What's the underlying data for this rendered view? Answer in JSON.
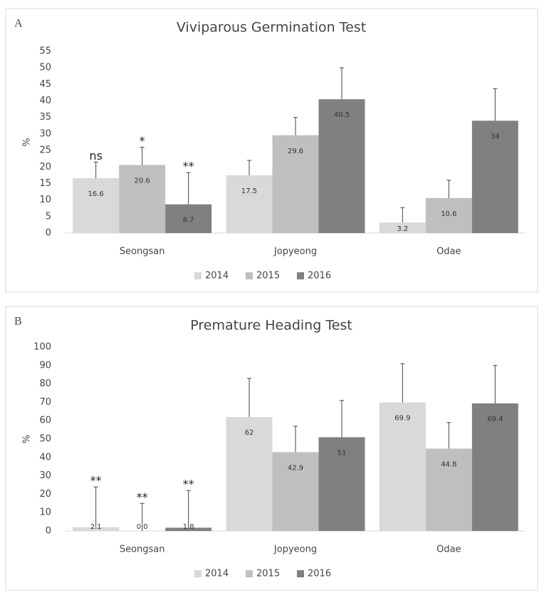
{
  "chart_data": [
    {
      "type": "bar",
      "panel_label": "A",
      "title": "Viviparous Germination Test",
      "y_label": "%",
      "categories": [
        "Seongsan",
        "Jopyeong",
        "Odae"
      ],
      "series": [
        {
          "name": "2014",
          "color": "#d9d9d9",
          "values": [
            16.6,
            17.5,
            3.2
          ],
          "errors": [
            4.9,
            4.5,
            4.5
          ],
          "annotations": [
            "ns",
            null,
            null
          ]
        },
        {
          "name": "2015",
          "color": "#bfbfbf",
          "values": [
            20.6,
            29.6,
            10.6
          ],
          "errors": [
            5.4,
            5.4,
            5.4
          ],
          "annotations": [
            "*",
            null,
            null
          ]
        },
        {
          "name": "2016",
          "color": "#808080",
          "values": [
            8.7,
            40.5,
            34
          ],
          "errors": [
            9.6,
            9.5,
            9.7
          ],
          "annotations": [
            "**",
            null,
            null
          ]
        }
      ],
      "ylim": [
        0,
        55
      ],
      "yticks": [
        0,
        5,
        10,
        15,
        20,
        25,
        30,
        35,
        40,
        45,
        50,
        55
      ],
      "legend": "bottom"
    },
    {
      "type": "bar",
      "panel_label": "B",
      "title": "Premature Heading Test",
      "y_label": "%",
      "categories": [
        "Seongsan",
        "Jopyeong",
        "Odae"
      ],
      "series": [
        {
          "name": "2014",
          "color": "#d9d9d9",
          "values": [
            2.1,
            62,
            69.9
          ],
          "errors": [
            21.9,
            21,
            21.1
          ],
          "annotations": [
            "**",
            null,
            null
          ]
        },
        {
          "name": "2015",
          "color": "#bfbfbf",
          "values": [
            0,
            42.9,
            44.8
          ],
          "value_labels": [
            "0.0",
            "42.9",
            "44.8"
          ],
          "errors": [
            15,
            14.1,
            14.2
          ],
          "annotations": [
            "**",
            null,
            null
          ]
        },
        {
          "name": "2016",
          "color": "#808080",
          "values": [
            1.8,
            51,
            69.4
          ],
          "errors": [
            20.2,
            20,
            20.6
          ],
          "annotations": [
            "**",
            null,
            null
          ]
        }
      ],
      "ylim": [
        0,
        100
      ],
      "yticks": [
        0,
        10,
        20,
        30,
        40,
        50,
        60,
        70,
        80,
        90,
        100
      ],
      "legend": "bottom"
    }
  ]
}
